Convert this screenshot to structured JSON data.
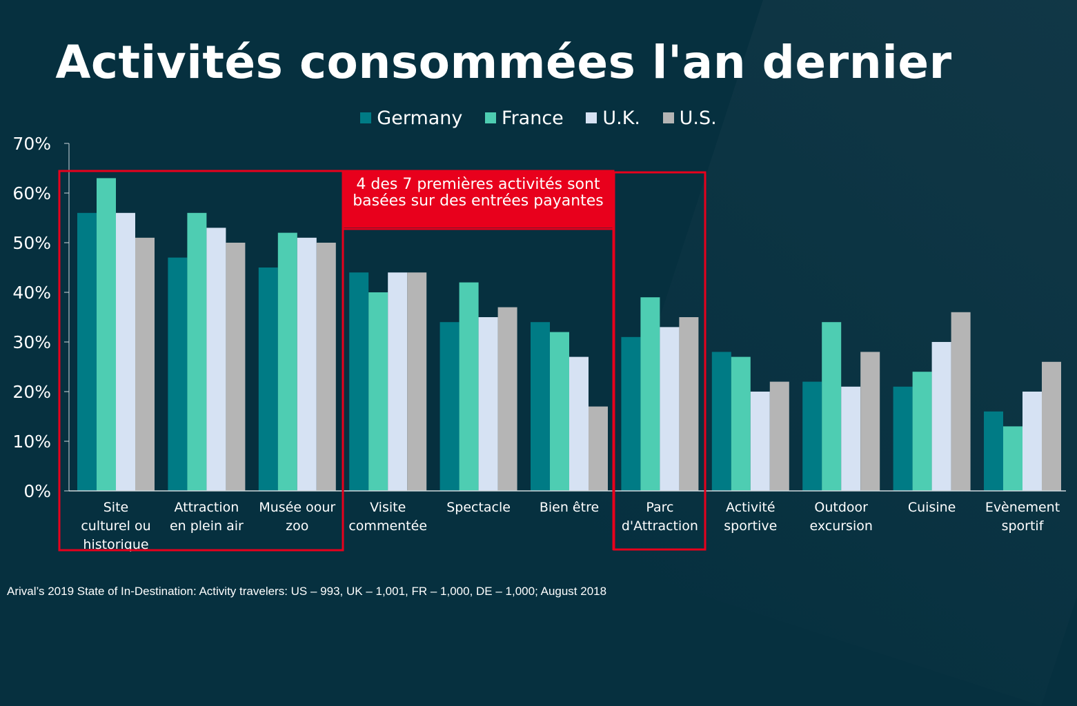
{
  "title": "Activités consommées l'an dernier",
  "legend": [
    {
      "name": "Germany",
      "color": "#007b85"
    },
    {
      "name": "France",
      "color": "#4ecdb2"
    },
    {
      "name": "U.K.",
      "color": "#d6e2f3"
    },
    {
      "name": "U.S.",
      "color": "#b5b5b5"
    }
  ],
  "annotation": "4 des 7 premières activités sont basées sur des entrées payantes",
  "source": "Arival’s 2019 State of In-Destination: Activity travelers: US – 993, UK – 1,001, FR – 1,000, DE – 1,000; August 2018",
  "highlight_color": "#e8001c",
  "chart_data": {
    "type": "bar",
    "title": "Activités consommées l'an dernier",
    "xlabel": "",
    "ylabel": "",
    "ylim": [
      0,
      70
    ],
    "yticks": [
      "0%",
      "10%",
      "20%",
      "30%",
      "40%",
      "50%",
      "60%",
      "70%"
    ],
    "categories": [
      "Site culturel ou historique",
      "Attraction en plein air",
      "Musée oour zoo",
      "Visite commentée",
      "Spectacle",
      "Bien être",
      "Parc d'Attraction",
      "Activité sportive",
      "Outdoor excursion",
      "Cuisine",
      "Evènement sportif"
    ],
    "category_lines": [
      [
        "Site",
        "culturel ou",
        "historique"
      ],
      [
        "Attraction",
        "en plein air"
      ],
      [
        "Musée oour",
        "zoo"
      ],
      [
        "Visite",
        "commentée"
      ],
      [
        "Spectacle"
      ],
      [
        "Bien être"
      ],
      [
        "Parc",
        "d'Attraction"
      ],
      [
        "Activité",
        "sportive"
      ],
      [
        "Outdoor",
        "excursion"
      ],
      [
        "Cuisine"
      ],
      [
        "Evènement",
        "sportif"
      ]
    ],
    "series": [
      {
        "name": "Germany",
        "color": "#007b85",
        "values": [
          56,
          47,
          45,
          44,
          34,
          34,
          31,
          28,
          22,
          21,
          16
        ]
      },
      {
        "name": "France",
        "color": "#4ecdb2",
        "values": [
          63,
          56,
          52,
          40,
          42,
          32,
          39,
          27,
          34,
          24,
          13
        ]
      },
      {
        "name": "U.K.",
        "color": "#d6e2f3",
        "values": [
          56,
          53,
          51,
          44,
          35,
          27,
          33,
          20,
          21,
          30,
          20
        ]
      },
      {
        "name": "U.S.",
        "color": "#b5b5b5",
        "values": [
          51,
          50,
          50,
          44,
          37,
          17,
          35,
          22,
          28,
          36,
          26
        ]
      }
    ],
    "highlight_groups": [
      [
        0,
        2
      ],
      [
        6,
        6
      ]
    ]
  }
}
